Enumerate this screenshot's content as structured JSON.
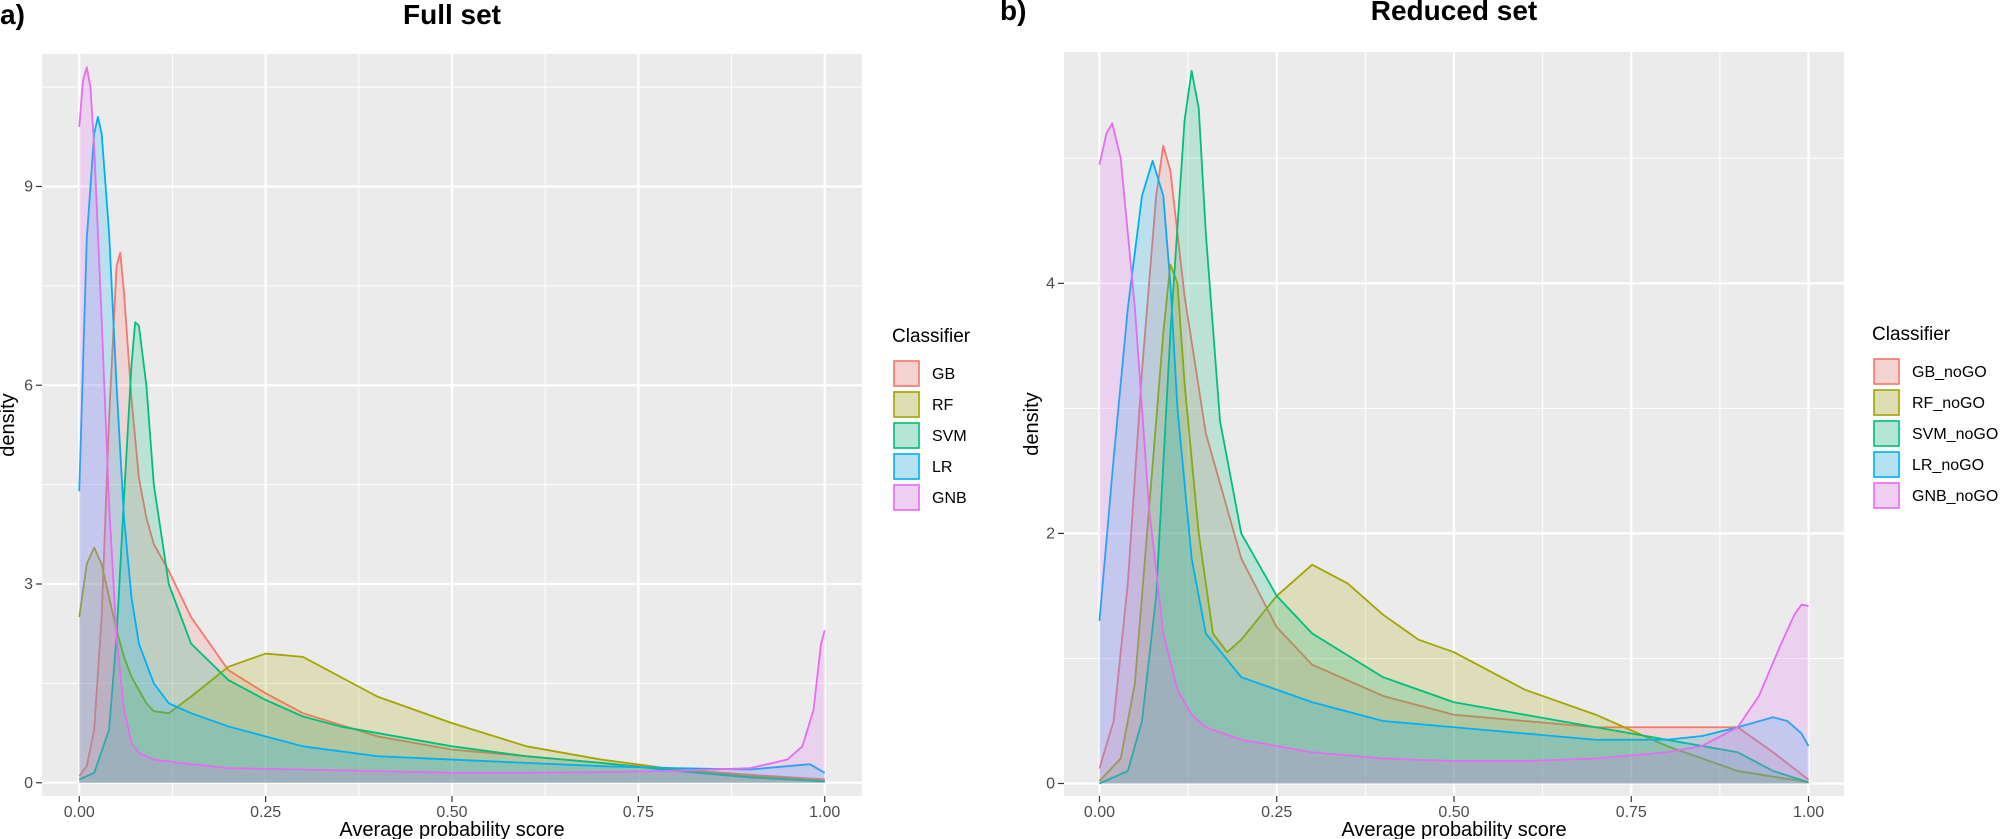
{
  "chart_data": [
    {
      "type": "area",
      "panel_label": "a)",
      "title": "Full set",
      "xlabel": "Average probability score",
      "ylabel": "density",
      "xlim": [
        -0.05,
        1.05
      ],
      "ylim": [
        -0.2,
        11.0
      ],
      "x_ticks": [
        0.0,
        0.25,
        0.5,
        0.75,
        1.0
      ],
      "x_tick_labels": [
        "0.00",
        "0.25",
        "0.50",
        "0.75",
        "1.00"
      ],
      "y_ticks": [
        0,
        3,
        6,
        9
      ],
      "y_tick_labels": [
        "0",
        "3",
        "6",
        "9"
      ],
      "grid": true,
      "legend_title": "Classifier",
      "legend_position": "right",
      "series": [
        {
          "name": "GB",
          "color": "#F8766D",
          "points": [
            [
              0,
              0.1
            ],
            [
              0.01,
              0.25
            ],
            [
              0.02,
              0.8
            ],
            [
              0.03,
              2.5
            ],
            [
              0.04,
              5.5
            ],
            [
              0.05,
              7.8
            ],
            [
              0.055,
              8.0
            ],
            [
              0.06,
              7.4
            ],
            [
              0.07,
              5.8
            ],
            [
              0.08,
              4.6
            ],
            [
              0.09,
              4.0
            ],
            [
              0.1,
              3.6
            ],
            [
              0.12,
              3.2
            ],
            [
              0.15,
              2.5
            ],
            [
              0.2,
              1.7
            ],
            [
              0.25,
              1.35
            ],
            [
              0.3,
              1.05
            ],
            [
              0.4,
              0.7
            ],
            [
              0.5,
              0.5
            ],
            [
              0.6,
              0.4
            ],
            [
              0.7,
              0.3
            ],
            [
              0.8,
              0.2
            ],
            [
              0.9,
              0.12
            ],
            [
              1.0,
              0.05
            ]
          ]
        },
        {
          "name": "RF",
          "color": "#A3A500",
          "points": [
            [
              0,
              2.5
            ],
            [
              0.01,
              3.3
            ],
            [
              0.02,
              3.55
            ],
            [
              0.03,
              3.3
            ],
            [
              0.04,
              2.8
            ],
            [
              0.05,
              2.3
            ],
            [
              0.06,
              1.9
            ],
            [
              0.07,
              1.6
            ],
            [
              0.08,
              1.4
            ],
            [
              0.09,
              1.2
            ],
            [
              0.1,
              1.08
            ],
            [
              0.12,
              1.05
            ],
            [
              0.15,
              1.3
            ],
            [
              0.2,
              1.75
            ],
            [
              0.25,
              1.95
            ],
            [
              0.3,
              1.9
            ],
            [
              0.35,
              1.6
            ],
            [
              0.4,
              1.3
            ],
            [
              0.5,
              0.9
            ],
            [
              0.6,
              0.55
            ],
            [
              0.7,
              0.35
            ],
            [
              0.8,
              0.2
            ],
            [
              0.9,
              0.1
            ],
            [
              1.0,
              0.03
            ]
          ]
        },
        {
          "name": "SVM",
          "color": "#00BF7D",
          "points": [
            [
              0,
              0.05
            ],
            [
              0.02,
              0.15
            ],
            [
              0.04,
              0.8
            ],
            [
              0.05,
              2.2
            ],
            [
              0.06,
              4.3
            ],
            [
              0.07,
              6.3
            ],
            [
              0.075,
              6.95
            ],
            [
              0.08,
              6.9
            ],
            [
              0.09,
              6.0
            ],
            [
              0.1,
              4.5
            ],
            [
              0.12,
              3.0
            ],
            [
              0.15,
              2.1
            ],
            [
              0.2,
              1.55
            ],
            [
              0.25,
              1.25
            ],
            [
              0.3,
              1.0
            ],
            [
              0.35,
              0.85
            ],
            [
              0.4,
              0.75
            ],
            [
              0.5,
              0.55
            ],
            [
              0.6,
              0.4
            ],
            [
              0.7,
              0.3
            ],
            [
              0.8,
              0.18
            ],
            [
              0.9,
              0.08
            ],
            [
              1.0,
              0.02
            ]
          ]
        },
        {
          "name": "LR",
          "color": "#00B0F6",
          "points": [
            [
              0,
              4.4
            ],
            [
              0.005,
              6.3
            ],
            [
              0.01,
              8.2
            ],
            [
              0.02,
              9.8
            ],
            [
              0.025,
              10.05
            ],
            [
              0.03,
              9.8
            ],
            [
              0.04,
              8.3
            ],
            [
              0.05,
              6.0
            ],
            [
              0.06,
              4.0
            ],
            [
              0.07,
              2.8
            ],
            [
              0.08,
              2.1
            ],
            [
              0.1,
              1.5
            ],
            [
              0.12,
              1.2
            ],
            [
              0.15,
              1.05
            ],
            [
              0.2,
              0.85
            ],
            [
              0.3,
              0.55
            ],
            [
              0.4,
              0.4
            ],
            [
              0.5,
              0.35
            ],
            [
              0.6,
              0.3
            ],
            [
              0.7,
              0.25
            ],
            [
              0.8,
              0.22
            ],
            [
              0.9,
              0.2
            ],
            [
              0.95,
              0.25
            ],
            [
              0.98,
              0.28
            ],
            [
              1.0,
              0.15
            ]
          ]
        },
        {
          "name": "GNB",
          "color": "#E76BF3",
          "points": [
            [
              0,
              9.9
            ],
            [
              0.005,
              10.6
            ],
            [
              0.01,
              10.8
            ],
            [
              0.015,
              10.5
            ],
            [
              0.02,
              9.6
            ],
            [
              0.03,
              7.0
            ],
            [
              0.04,
              4.2
            ],
            [
              0.05,
              2.2
            ],
            [
              0.06,
              1.1
            ],
            [
              0.07,
              0.6
            ],
            [
              0.08,
              0.45
            ],
            [
              0.1,
              0.35
            ],
            [
              0.15,
              0.28
            ],
            [
              0.2,
              0.22
            ],
            [
              0.3,
              0.2
            ],
            [
              0.5,
              0.15
            ],
            [
              0.6,
              0.15
            ],
            [
              0.7,
              0.16
            ],
            [
              0.8,
              0.18
            ],
            [
              0.9,
              0.22
            ],
            [
              0.95,
              0.35
            ],
            [
              0.97,
              0.55
            ],
            [
              0.985,
              1.1
            ],
            [
              0.995,
              2.1
            ],
            [
              1.0,
              2.3
            ]
          ]
        }
      ]
    },
    {
      "type": "area",
      "panel_label": "b)",
      "title": "Reduced set",
      "xlabel": "Average probability score",
      "ylabel": "density",
      "xlim": [
        -0.05,
        1.05
      ],
      "ylim": [
        -0.1,
        5.85
      ],
      "x_ticks": [
        0.0,
        0.25,
        0.5,
        0.75,
        1.0
      ],
      "x_tick_labels": [
        "0.00",
        "0.25",
        "0.50",
        "0.75",
        "1.00"
      ],
      "y_ticks": [
        0,
        2,
        4
      ],
      "y_tick_labels": [
        "0",
        "2",
        "4"
      ],
      "grid": true,
      "legend_title": "Classifier",
      "legend_position": "right",
      "series": [
        {
          "name": "GB_noGO",
          "color": "#F8766D",
          "points": [
            [
              0,
              0.12
            ],
            [
              0.02,
              0.5
            ],
            [
              0.04,
              1.6
            ],
            [
              0.06,
              3.3
            ],
            [
              0.08,
              4.7
            ],
            [
              0.09,
              5.1
            ],
            [
              0.1,
              4.9
            ],
            [
              0.12,
              3.9
            ],
            [
              0.15,
              2.8
            ],
            [
              0.2,
              1.8
            ],
            [
              0.25,
              1.25
            ],
            [
              0.3,
              0.95
            ],
            [
              0.4,
              0.7
            ],
            [
              0.5,
              0.55
            ],
            [
              0.6,
              0.5
            ],
            [
              0.7,
              0.45
            ],
            [
              0.8,
              0.45
            ],
            [
              0.9,
              0.45
            ],
            [
              0.95,
              0.25
            ],
            [
              1.0,
              0.03
            ]
          ]
        },
        {
          "name": "RF_noGO",
          "color": "#A3A500",
          "points": [
            [
              0,
              0.02
            ],
            [
              0.03,
              0.2
            ],
            [
              0.05,
              0.8
            ],
            [
              0.07,
              2.2
            ],
            [
              0.09,
              3.6
            ],
            [
              0.1,
              4.15
            ],
            [
              0.11,
              4.0
            ],
            [
              0.12,
              3.2
            ],
            [
              0.14,
              2.0
            ],
            [
              0.16,
              1.2
            ],
            [
              0.18,
              1.05
            ],
            [
              0.2,
              1.15
            ],
            [
              0.25,
              1.5
            ],
            [
              0.3,
              1.75
            ],
            [
              0.35,
              1.6
            ],
            [
              0.4,
              1.35
            ],
            [
              0.45,
              1.15
            ],
            [
              0.5,
              1.05
            ],
            [
              0.55,
              0.9
            ],
            [
              0.6,
              0.75
            ],
            [
              0.7,
              0.55
            ],
            [
              0.8,
              0.3
            ],
            [
              0.9,
              0.1
            ],
            [
              1.0,
              0.01
            ]
          ]
        },
        {
          "name": "SVM_noGO",
          "color": "#00BF7D",
          "points": [
            [
              0,
              0.0
            ],
            [
              0.04,
              0.1
            ],
            [
              0.06,
              0.5
            ],
            [
              0.08,
              1.5
            ],
            [
              0.1,
              3.6
            ],
            [
              0.12,
              5.3
            ],
            [
              0.13,
              5.7
            ],
            [
              0.14,
              5.4
            ],
            [
              0.15,
              4.4
            ],
            [
              0.17,
              2.9
            ],
            [
              0.2,
              2.0
            ],
            [
              0.25,
              1.5
            ],
            [
              0.3,
              1.2
            ],
            [
              0.4,
              0.85
            ],
            [
              0.5,
              0.65
            ],
            [
              0.6,
              0.55
            ],
            [
              0.7,
              0.45
            ],
            [
              0.8,
              0.35
            ],
            [
              0.9,
              0.25
            ],
            [
              0.95,
              0.1
            ],
            [
              1.0,
              0.01
            ]
          ]
        },
        {
          "name": "LR_noGO",
          "color": "#00B0F6",
          "points": [
            [
              0,
              1.3
            ],
            [
              0.02,
              2.6
            ],
            [
              0.04,
              3.8
            ],
            [
              0.06,
              4.7
            ],
            [
              0.075,
              4.98
            ],
            [
              0.09,
              4.7
            ],
            [
              0.1,
              4.0
            ],
            [
              0.11,
              3.0
            ],
            [
              0.13,
              1.8
            ],
            [
              0.15,
              1.2
            ],
            [
              0.2,
              0.85
            ],
            [
              0.3,
              0.65
            ],
            [
              0.4,
              0.5
            ],
            [
              0.5,
              0.45
            ],
            [
              0.6,
              0.4
            ],
            [
              0.7,
              0.35
            ],
            [
              0.8,
              0.35
            ],
            [
              0.85,
              0.38
            ],
            [
              0.9,
              0.45
            ],
            [
              0.95,
              0.53
            ],
            [
              0.97,
              0.5
            ],
            [
              0.99,
              0.4
            ],
            [
              1.0,
              0.3
            ]
          ]
        },
        {
          "name": "GNB_noGO",
          "color": "#E76BF3",
          "points": [
            [
              0,
              4.95
            ],
            [
              0.01,
              5.2
            ],
            [
              0.018,
              5.28
            ],
            [
              0.03,
              5.0
            ],
            [
              0.05,
              3.8
            ],
            [
              0.07,
              2.2
            ],
            [
              0.09,
              1.2
            ],
            [
              0.11,
              0.75
            ],
            [
              0.13,
              0.55
            ],
            [
              0.15,
              0.45
            ],
            [
              0.2,
              0.35
            ],
            [
              0.3,
              0.25
            ],
            [
              0.4,
              0.2
            ],
            [
              0.5,
              0.18
            ],
            [
              0.6,
              0.18
            ],
            [
              0.7,
              0.2
            ],
            [
              0.8,
              0.25
            ],
            [
              0.85,
              0.3
            ],
            [
              0.9,
              0.45
            ],
            [
              0.93,
              0.7
            ],
            [
              0.96,
              1.1
            ],
            [
              0.98,
              1.35
            ],
            [
              0.99,
              1.43
            ],
            [
              1.0,
              1.42
            ]
          ]
        }
      ]
    }
  ]
}
